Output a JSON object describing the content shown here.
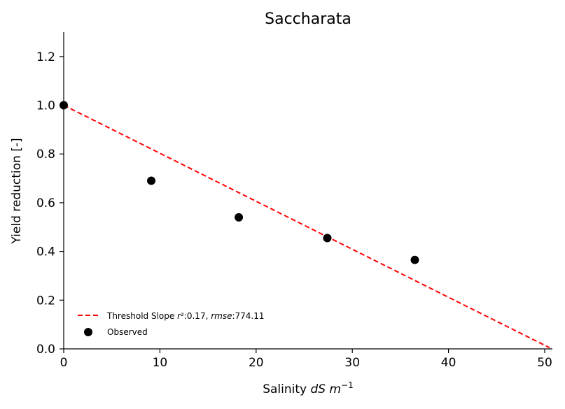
{
  "chart_data": {
    "type": "scatter",
    "title": "Saccharata",
    "xlabel": {
      "prefix": "Salinity ",
      "italic": "dS m",
      "superscript": "−1"
    },
    "ylabel": "Yield reduction [-]",
    "xlim": [
      0,
      50.8
    ],
    "ylim": [
      0,
      1.3
    ],
    "xticks": [
      0,
      10,
      20,
      30,
      40,
      50
    ],
    "yticks": [
      0.0,
      0.2,
      0.4,
      0.6,
      0.8,
      1.0,
      1.2
    ],
    "xtick_labels": [
      "0",
      "10",
      "20",
      "30",
      "40",
      "50"
    ],
    "ytick_labels": [
      "0.0",
      "0.2",
      "0.4",
      "0.6",
      "0.8",
      "1.0",
      "1.2"
    ],
    "grid": false,
    "legend_position": "lower-left",
    "series": [
      {
        "name": "Observed",
        "kind": "scatter",
        "color": "#000000",
        "x": [
          0,
          9.1,
          18.2,
          27.4,
          36.5
        ],
        "y": [
          1.0,
          0.69,
          0.54,
          0.455,
          0.365
        ]
      }
    ],
    "fit": {
      "name": "Threshold Slope",
      "kind": "dashed-line",
      "color": "#ff0000",
      "x": [
        0,
        50.5
      ],
      "y": [
        1.0,
        0.005
      ],
      "stats_text": [
        {
          "text": "Threshold Slope ",
          "italic": false
        },
        {
          "text": "r",
          "italic": true
        },
        {
          "text": "²:0.17, ",
          "italic": false
        },
        {
          "text": "rmse",
          "italic": true
        },
        {
          "text": ":774.11",
          "italic": false
        }
      ]
    }
  }
}
